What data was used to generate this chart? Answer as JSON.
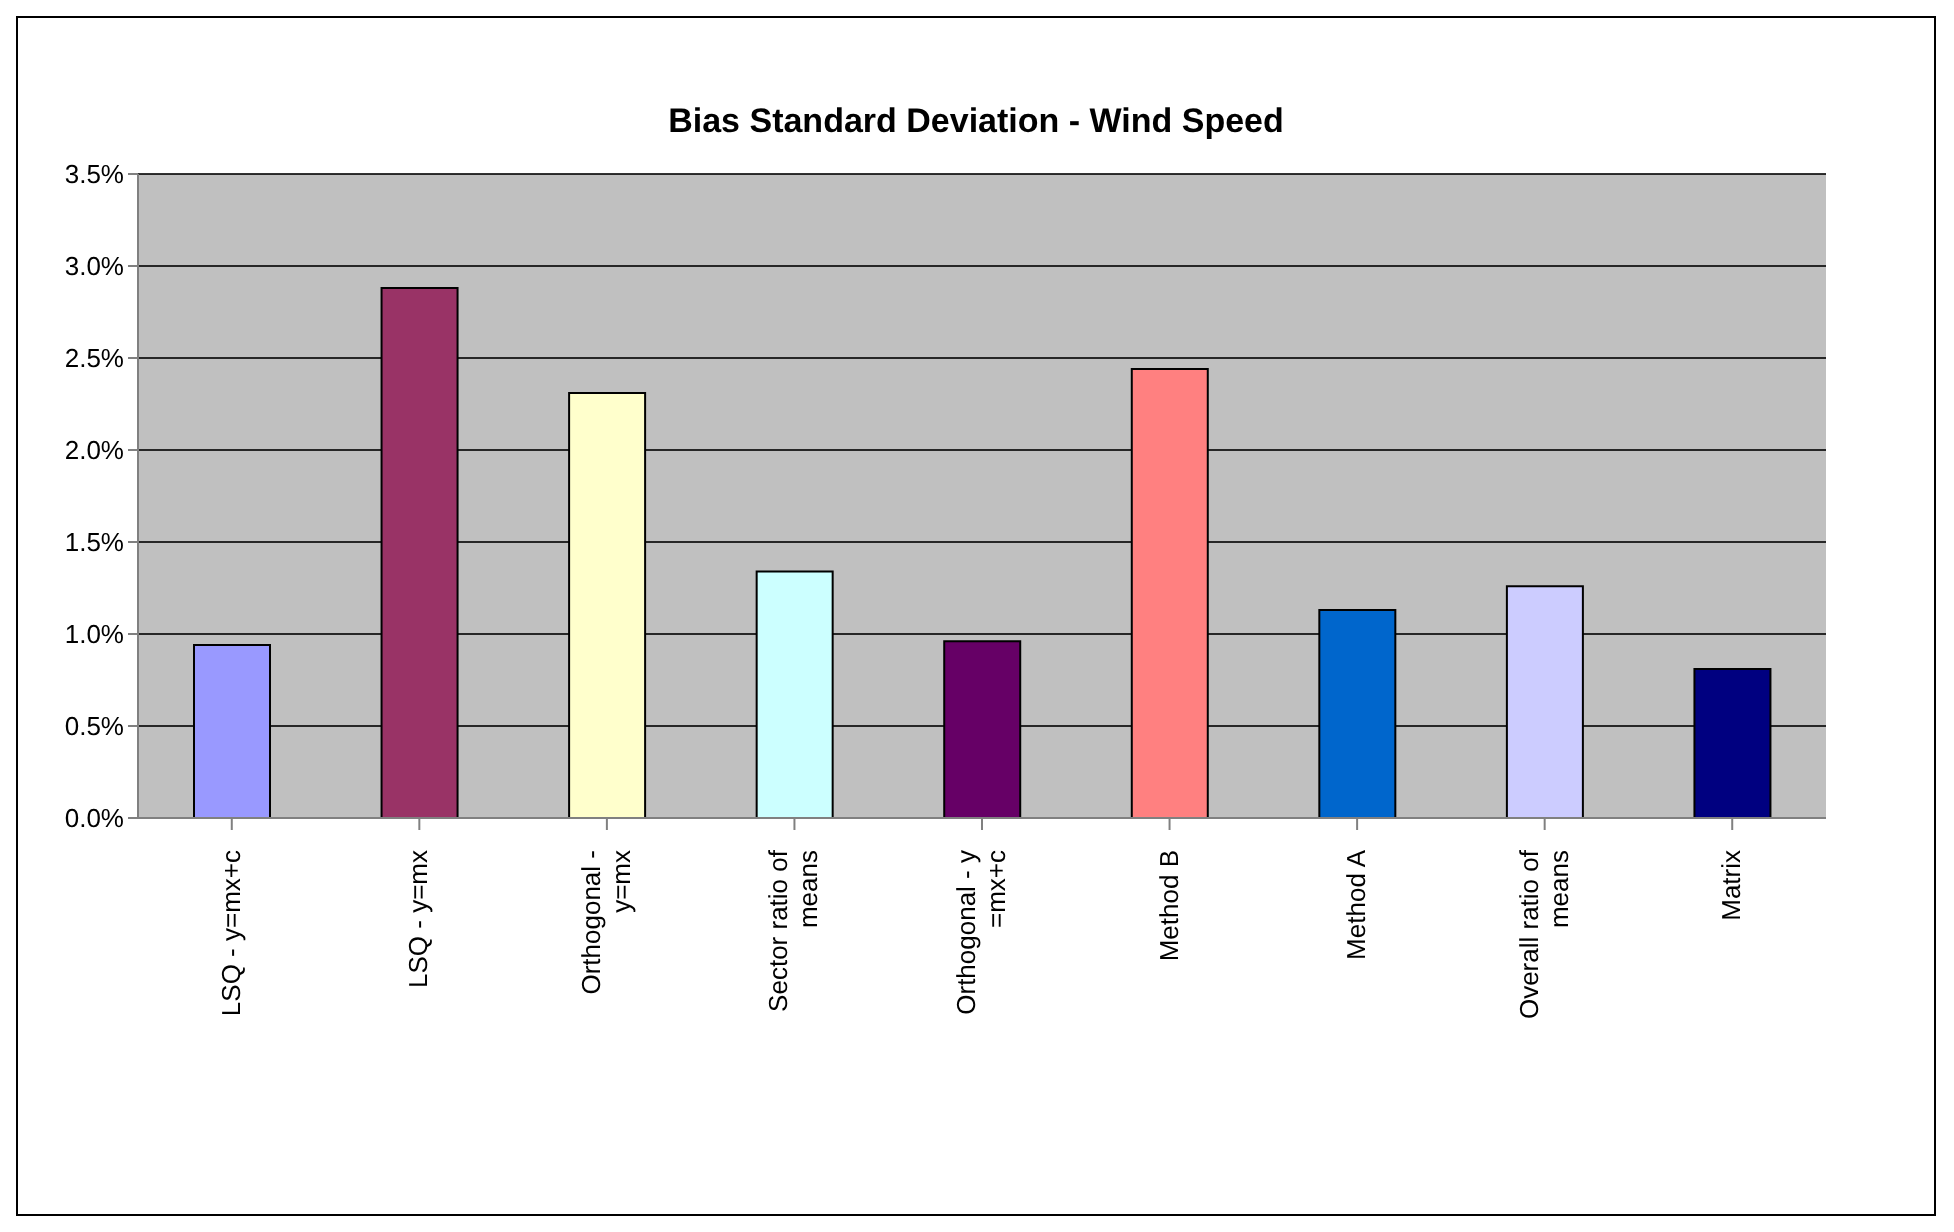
{
  "chart_data": {
    "type": "bar",
    "title": "Bias Standard Deviation - Wind Speed",
    "categories": [
      "LSQ - y=mx+c",
      "LSQ - y=mx",
      "Orthogonal - y=mx",
      "Sector ratio of means",
      "Orthogonal - y =mx+c",
      "Method B",
      "Method A",
      "Overall ratio of means",
      "Matrix"
    ],
    "values": [
      0.94,
      2.88,
      2.31,
      1.34,
      0.96,
      2.44,
      1.13,
      1.26,
      0.81
    ],
    "colors": [
      "#9999ff",
      "#993366",
      "#ffffcc",
      "#ccffff",
      "#660066",
      "#ff8080",
      "#0066cc",
      "#ccccff",
      "#000080"
    ],
    "ylim": [
      0,
      3.5
    ],
    "yticks": [
      {
        "value": 0,
        "label": "0.0%"
      },
      {
        "value": 0.5,
        "label": "0.5%"
      },
      {
        "value": 1,
        "label": "1.0%"
      },
      {
        "value": 1.5,
        "label": "1.5%"
      },
      {
        "value": 2,
        "label": "2.0%"
      },
      {
        "value": 2.5,
        "label": "2.5%"
      },
      {
        "value": 3,
        "label": "3.0%"
      },
      {
        "value": 3.5,
        "label": "3.5%"
      }
    ],
    "grid": "y",
    "legend": false
  }
}
